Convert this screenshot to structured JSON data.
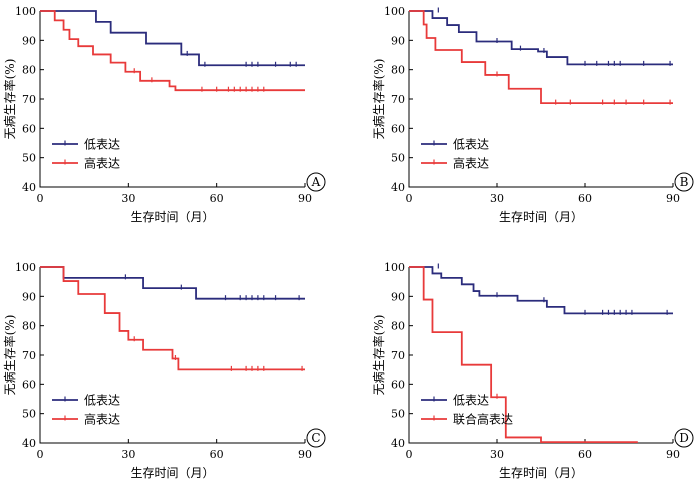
{
  "chart_data": [
    {
      "type": "line",
      "panel_label": "A",
      "xlabel": "生存时间（月）",
      "ylabel": "无病生存率(%)",
      "xlim": [
        0,
        90
      ],
      "ylim": [
        40,
        100
      ],
      "xticks": [
        0,
        30,
        60,
        90
      ],
      "yticks": [
        40,
        50,
        60,
        70,
        80,
        90,
        100
      ],
      "legend_position": "bottom-left",
      "series": [
        {
          "name": "低表达",
          "color": "#2b2c7c",
          "steps": [
            [
              0,
              100
            ],
            [
              19,
              96.3
            ],
            [
              24,
              92.6
            ],
            [
              36,
              88.9
            ],
            [
              48,
              85.2
            ],
            [
              54,
              81.5
            ],
            [
              90,
              81.5
            ]
          ],
          "censored": [
            [
              50,
              85.2
            ],
            [
              56,
              81.5
            ],
            [
              70,
              81.5
            ],
            [
              72,
              81.5
            ],
            [
              74,
              81.5
            ],
            [
              80,
              81.5
            ],
            [
              85,
              81.5
            ],
            [
              87,
              81.5
            ]
          ]
        },
        {
          "name": "高表达",
          "color": "#e83a3a",
          "steps": [
            [
              0,
              100
            ],
            [
              5,
              96.8
            ],
            [
              8,
              93.6
            ],
            [
              10,
              90.4
            ],
            [
              13,
              88
            ],
            [
              18,
              85.2
            ],
            [
              24,
              82.4
            ],
            [
              29,
              79.3
            ],
            [
              34,
              76.2
            ],
            [
              44,
              74.3
            ],
            [
              46,
              73
            ],
            [
              90,
              73
            ]
          ],
          "censored": [
            [
              32,
              79.3
            ],
            [
              38,
              76.2
            ],
            [
              55,
              73
            ],
            [
              60,
              73
            ],
            [
              64,
              73
            ],
            [
              66,
              73
            ],
            [
              68,
              73
            ],
            [
              70,
              73
            ],
            [
              72,
              73
            ],
            [
              74,
              73
            ],
            [
              76,
              73
            ]
          ]
        }
      ]
    },
    {
      "type": "line",
      "panel_label": "B",
      "xlabel": "生存时间（月）",
      "ylabel": "无病生存率(%)",
      "xlim": [
        0,
        90
      ],
      "ylim": [
        40,
        100
      ],
      "xticks": [
        0,
        30,
        60,
        90
      ],
      "yticks": [
        40,
        50,
        60,
        70,
        80,
        90,
        100
      ],
      "legend_position": "bottom-left",
      "series": [
        {
          "name": "低表达",
          "color": "#2b2c7c",
          "steps": [
            [
              0,
              100
            ],
            [
              8,
              97.6
            ],
            [
              13,
              95.2
            ],
            [
              17,
              92.8
            ],
            [
              23,
              89.6
            ],
            [
              35,
              87
            ],
            [
              44,
              86.2
            ],
            [
              47,
              84.3
            ],
            [
              54,
              81.8
            ],
            [
              90,
              81.8
            ]
          ],
          "censored": [
            [
              10,
              100
            ],
            [
              30,
              89.6
            ],
            [
              38,
              87
            ],
            [
              46,
              86.2
            ],
            [
              60,
              81.8
            ],
            [
              64,
              81.8
            ],
            [
              68,
              81.8
            ],
            [
              70,
              81.8
            ],
            [
              72,
              81.8
            ],
            [
              80,
              81.8
            ],
            [
              89,
              81.8
            ]
          ]
        },
        {
          "name": "高表达",
          "color": "#e83a3a",
          "steps": [
            [
              0,
              100
            ],
            [
              5,
              95.4
            ],
            [
              6,
              90.8
            ],
            [
              9,
              86.7
            ],
            [
              18,
              82.6
            ],
            [
              26,
              78.2
            ],
            [
              34,
              73.5
            ],
            [
              45,
              68.6
            ],
            [
              90,
              68.6
            ]
          ],
          "censored": [
            [
              30,
              78.2
            ],
            [
              50,
              68.6
            ],
            [
              55,
              68.6
            ],
            [
              66,
              68.6
            ],
            [
              70,
              68.6
            ],
            [
              74,
              68.6
            ],
            [
              80,
              68.6
            ],
            [
              89,
              68.6
            ]
          ]
        }
      ]
    },
    {
      "type": "line",
      "panel_label": "C",
      "xlabel": "生存时间（月）",
      "ylabel": "无病生存率(%)",
      "xlim": [
        0,
        90
      ],
      "ylim": [
        40,
        100
      ],
      "xticks": [
        0,
        30,
        60,
        90
      ],
      "yticks": [
        40,
        50,
        60,
        70,
        80,
        90,
        100
      ],
      "legend_position": "bottom-left",
      "series": [
        {
          "name": "低表达",
          "color": "#2b2c7c",
          "steps": [
            [
              0,
              100
            ],
            [
              8,
              96.3
            ],
            [
              35,
              92.8
            ],
            [
              53,
              89.2
            ],
            [
              90,
              89.2
            ]
          ],
          "censored": [
            [
              29,
              96.3
            ],
            [
              48,
              92.8
            ],
            [
              63,
              89.2
            ],
            [
              68,
              89.2
            ],
            [
              70,
              89.2
            ],
            [
              72,
              89.2
            ],
            [
              74,
              89.2
            ],
            [
              76,
              89.2
            ],
            [
              80,
              89.2
            ],
            [
              88,
              89.2
            ]
          ]
        },
        {
          "name": "高表达",
          "color": "#e83a3a",
          "steps": [
            [
              0,
              100
            ],
            [
              8,
              95.2
            ],
            [
              13,
              90.8
            ],
            [
              22,
              84.3
            ],
            [
              27,
              78.2
            ],
            [
              30,
              75.2
            ],
            [
              35,
              71.8
            ],
            [
              45,
              68.8
            ],
            [
              47,
              65.1
            ],
            [
              90,
              65.1
            ]
          ],
          "censored": [
            [
              32,
              75.2
            ],
            [
              46,
              68.8
            ],
            [
              65,
              65.1
            ],
            [
              70,
              65.1
            ],
            [
              72,
              65.1
            ],
            [
              74,
              65.1
            ],
            [
              76,
              65.1
            ],
            [
              89,
              65.1
            ]
          ]
        }
      ]
    },
    {
      "type": "line",
      "panel_label": "D",
      "xlabel": "生存时间（月）",
      "ylabel": "无病生存率(%)",
      "xlim": [
        0,
        90
      ],
      "ylim": [
        40,
        100
      ],
      "xticks": [
        0,
        30,
        60,
        90
      ],
      "yticks": [
        40,
        50,
        60,
        70,
        80,
        90,
        100
      ],
      "legend_position": "bottom-left",
      "series": [
        {
          "name": "低表达",
          "color": "#2b2c7c",
          "steps": [
            [
              0,
              100
            ],
            [
              8,
              97.8
            ],
            [
              11,
              96.3
            ],
            [
              18,
              94.1
            ],
            [
              22,
              91.8
            ],
            [
              24,
              90.2
            ],
            [
              37,
              88.5
            ],
            [
              47,
              86.4
            ],
            [
              53,
              84.2
            ],
            [
              90,
              84.2
            ]
          ],
          "censored": [
            [
              10,
              100
            ],
            [
              30,
              90.2
            ],
            [
              46,
              88.5
            ],
            [
              60,
              84.2
            ],
            [
              66,
              84.2
            ],
            [
              68,
              84.2
            ],
            [
              70,
              84.2
            ],
            [
              72,
              84.2
            ],
            [
              74,
              84.2
            ],
            [
              76,
              84.2
            ],
            [
              88,
              84.2
            ]
          ]
        },
        {
          "name": "联合高表达",
          "color": "#e83a3a",
          "steps": [
            [
              0,
              100
            ],
            [
              5,
              88.9
            ],
            [
              8,
              77.8
            ],
            [
              18,
              66.7
            ],
            [
              28,
              55.6
            ],
            [
              33,
              41.9
            ],
            [
              45,
              40.3
            ],
            [
              78,
              40.3
            ]
          ],
          "censored": [
            [
              30,
              55.6
            ]
          ]
        }
      ]
    }
  ]
}
